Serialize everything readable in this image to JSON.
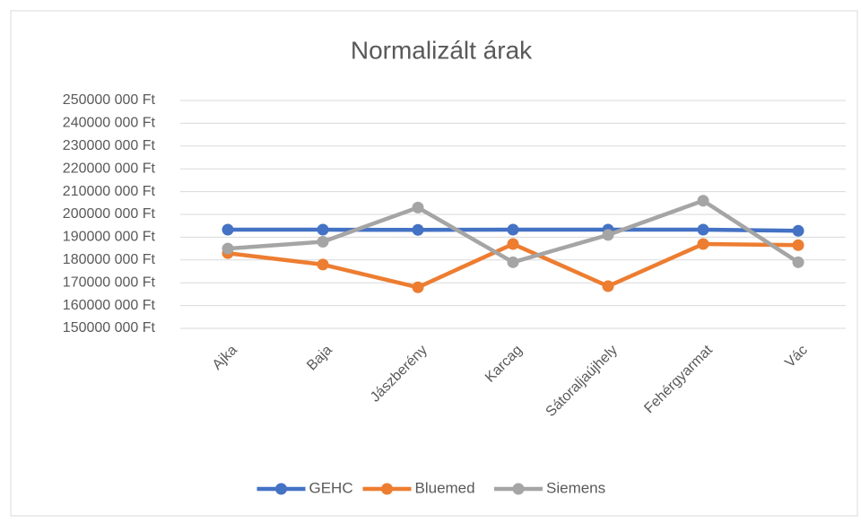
{
  "chart_data": {
    "type": "line",
    "title": "Normalizált árak",
    "categories": [
      "Ajka",
      "Baja",
      "Jászberény",
      "Karcag",
      "Sátoraljaújhely",
      "Fehérgyarmat",
      "Vác"
    ],
    "series": [
      {
        "name": "GEHC",
        "color": "#4472c4",
        "values": [
          193300000,
          193300000,
          193200000,
          193300000,
          193300000,
          193300000,
          192800000
        ]
      },
      {
        "name": "Bluemed",
        "color": "#ed7d31",
        "values": [
          183000000,
          178000000,
          168000000,
          187000000,
          168500000,
          187000000,
          186500000
        ]
      },
      {
        "name": "Siemens",
        "color": "#a5a5a5",
        "values": [
          185000000,
          188000000,
          203000000,
          179000000,
          191000000,
          206000000,
          179000000
        ]
      }
    ],
    "ylim": [
      150000000,
      250000000
    ],
    "yticks": [
      {
        "value": 150000000,
        "label": "150000 000 Ft"
      },
      {
        "value": 160000000,
        "label": "160000 000 Ft"
      },
      {
        "value": 170000000,
        "label": "170000 000 Ft"
      },
      {
        "value": 180000000,
        "label": "180000 000 Ft"
      },
      {
        "value": 190000000,
        "label": "190000 000 Ft"
      },
      {
        "value": 200000000,
        "label": "200000 000 Ft"
      },
      {
        "value": 210000000,
        "label": "210000 000 Ft"
      },
      {
        "value": 220000000,
        "label": "220000 000 Ft"
      },
      {
        "value": 230000000,
        "label": "230000 000 Ft"
      },
      {
        "value": 240000000,
        "label": "240000 000 Ft"
      },
      {
        "value": 250000000,
        "label": "250000 000 Ft"
      }
    ],
    "grid": true,
    "legend": "bottom"
  }
}
